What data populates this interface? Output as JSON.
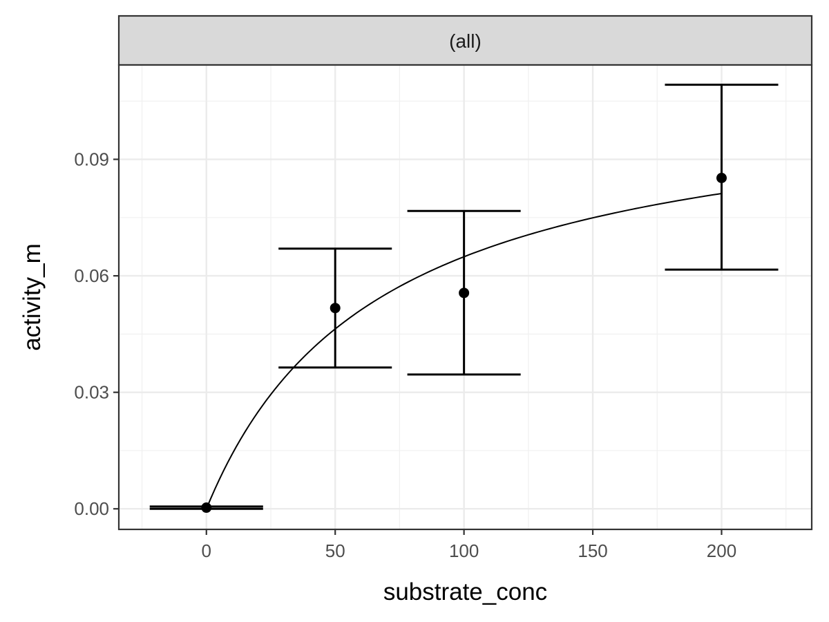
{
  "chart_data": {
    "type": "scatter",
    "facet_label": "(all)",
    "xlabel": "substrate_conc",
    "ylabel": "activity_m",
    "xlim": [
      -34,
      235
    ],
    "ylim": [
      -0.0053,
      0.1143
    ],
    "x_ticks": [
      0,
      50,
      100,
      150,
      200
    ],
    "x_tick_labels": [
      "0",
      "50",
      "100",
      "150",
      "200"
    ],
    "y_ticks": [
      0.0,
      0.03,
      0.06,
      0.09
    ],
    "y_tick_labels": [
      "0.00",
      "0.03",
      "0.06",
      "0.09"
    ],
    "grid": true,
    "points": [
      {
        "x": 0,
        "y": 0.0003,
        "ymin": 0.0,
        "ymax": 0.0006
      },
      {
        "x": 50,
        "y": 0.0517,
        "ymin": 0.0364,
        "ymax": 0.067
      },
      {
        "x": 100,
        "y": 0.0556,
        "ymin": 0.0346,
        "ymax": 0.0767
      },
      {
        "x": 200,
        "y": 0.0852,
        "ymin": 0.0616,
        "ymax": 0.1092
      }
    ],
    "errorbar_halfwidth": 22,
    "fit": {
      "model": "Michaelis-Menten",
      "vmax": 0.1084,
      "km": 67,
      "x_range": [
        0,
        200
      ]
    }
  }
}
